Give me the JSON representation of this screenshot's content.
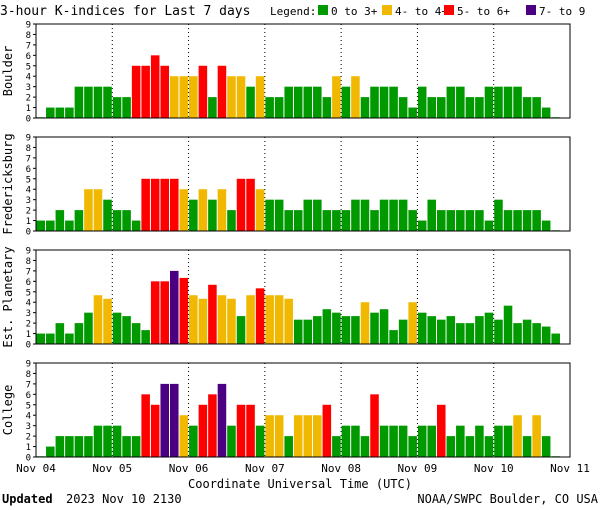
{
  "header": {
    "title": "3-hour K-indices for Last 7 days",
    "legend_label": "Legend:",
    "legend": [
      {
        "label": "0 to 3+",
        "color": "#009900"
      },
      {
        "label": "4- to 4+",
        "color": "#f0b800"
      },
      {
        "label": "5- to 6+",
        "color": "#ff0000"
      },
      {
        "label": "7- to 9",
        "color": "#4b0082"
      }
    ]
  },
  "footer": {
    "updated_label": "Updated",
    "updated_value": "2023 Nov 10 2130",
    "credit": "NOAA/SWPC Boulder, CO USA"
  },
  "chart_data": {
    "type": "bar",
    "xlabel": "Coordinate Universal Time (UTC)",
    "x_ticks": [
      "Nov 04",
      "Nov 05",
      "Nov 06",
      "Nov 07",
      "Nov 08",
      "Nov 09",
      "Nov 10",
      "Nov 11"
    ],
    "ylim": [
      0,
      9
    ],
    "y_ticks": [
      "0",
      "1",
      "2",
      "3",
      "4",
      "5",
      "6",
      "7",
      "8",
      "9"
    ],
    "grid": true,
    "bin_hours": 3,
    "colors": {
      "quiet": "#009900",
      "active": "#f0b800",
      "storm": "#ff0000",
      "severe": "#4b0082"
    },
    "panels": [
      {
        "name": "Boulder",
        "values": [
          0.07,
          1,
          1,
          1,
          3,
          3,
          3,
          3,
          2,
          2,
          5,
          5,
          6,
          5,
          4,
          4,
          4,
          5,
          2,
          5,
          4,
          4,
          3,
          4,
          2,
          2,
          3,
          3,
          3,
          3,
          2,
          4,
          3,
          4,
          2,
          3,
          3,
          3,
          2,
          1,
          3,
          2,
          2,
          3,
          3,
          2,
          2,
          3,
          3,
          3,
          3,
          2,
          2,
          1,
          0.07
        ]
      },
      {
        "name": "Fredericksburg",
        "values": [
          1,
          1,
          2,
          1,
          2,
          4,
          4,
          3,
          2,
          2,
          1,
          5,
          5,
          5,
          5,
          4,
          3,
          4,
          3,
          4,
          2,
          5,
          5,
          4,
          3,
          3,
          2,
          2,
          3,
          3,
          2,
          2,
          2,
          3,
          3,
          2,
          3,
          3,
          3,
          2,
          1,
          3,
          2,
          2,
          2,
          2,
          2,
          1,
          3,
          2,
          2,
          2,
          2,
          1,
          0.07
        ]
      },
      {
        "name": "Est. Planetary",
        "values": [
          1,
          1,
          2,
          1,
          2,
          3,
          4.67,
          4.33,
          3,
          2.67,
          2,
          1.33,
          6,
          6,
          7,
          6.33,
          4.67,
          4.33,
          5.67,
          4.67,
          4.33,
          2.67,
          4.67,
          5.33,
          4.67,
          4.67,
          4.33,
          2.33,
          2.33,
          2.67,
          3.33,
          3,
          2.67,
          2.67,
          4,
          3,
          3.33,
          1.33,
          2.33,
          4,
          3,
          2.67,
          2.33,
          2.67,
          2,
          2,
          2.67,
          3,
          2.33,
          3.67,
          2,
          2.33,
          2,
          1.67,
          1
        ]
      },
      {
        "name": "College",
        "values": [
          0.07,
          1,
          2,
          2,
          2,
          2,
          3,
          3,
          3,
          2,
          2,
          6,
          5,
          7,
          7,
          4,
          3,
          5,
          6,
          7,
          3,
          5,
          5,
          3,
          4,
          4,
          2,
          4,
          4,
          4,
          5,
          2,
          3,
          3,
          2,
          6,
          3,
          3,
          3,
          2,
          3,
          3,
          5,
          2,
          3,
          2,
          3,
          2,
          3,
          3,
          4,
          2,
          4,
          2,
          0.07
        ]
      }
    ]
  }
}
